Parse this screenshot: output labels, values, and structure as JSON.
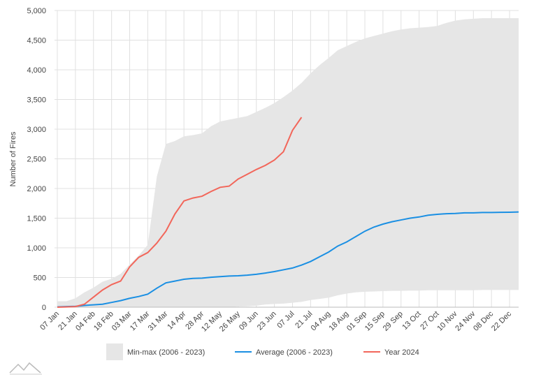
{
  "chart_data": {
    "type": "line",
    "y_label": "Number of Fires",
    "categories": [
      "07 Jan",
      null,
      "21 Jan",
      null,
      "04 Feb",
      null,
      "18 Feb",
      null,
      "03 Mar",
      null,
      "17 Mar",
      null,
      "31 Mar",
      null,
      "14 Apr",
      null,
      "28 Apr",
      null,
      "12 May",
      null,
      "26 May",
      null,
      "09 Jun",
      null,
      "23 Jun",
      null,
      "07 Jul",
      null,
      "21 Jul",
      null,
      "04 Aug",
      null,
      "18 Aug",
      null,
      "01 Sep",
      null,
      "15 Sep",
      null,
      "29 Sep",
      null,
      "13 Oct",
      null,
      "27 Oct",
      null,
      "10 Nov",
      null,
      "24 Nov",
      null,
      "08 Dec",
      null,
      "22 Dec",
      null
    ],
    "band": {
      "name": "Min-max (2006 - 2023)",
      "color": "#e6e6e6",
      "max": [
        100,
        100,
        150,
        250,
        330,
        430,
        480,
        560,
        720,
        870,
        1050,
        2200,
        2750,
        2800,
        2880,
        2900,
        2930,
        3050,
        3130,
        3160,
        3190,
        3220,
        3290,
        3360,
        3440,
        3540,
        3650,
        3780,
        3940,
        4080,
        4200,
        4330,
        4400,
        4470,
        4530,
        4570,
        4610,
        4650,
        4680,
        4700,
        4710,
        4720,
        4740,
        4790,
        4830,
        4850,
        4860,
        4870,
        4870,
        4870,
        4870,
        4870
      ],
      "min": [
        0,
        0,
        0,
        0,
        0,
        0,
        0,
        0,
        0,
        0,
        0,
        0,
        0,
        0,
        0,
        0,
        0,
        0,
        0,
        0,
        10,
        15,
        25,
        45,
        55,
        60,
        75,
        90,
        120,
        140,
        160,
        200,
        230,
        250,
        260,
        265,
        270,
        275,
        275,
        280,
        280,
        285,
        285,
        285,
        285,
        285,
        285,
        290,
        290,
        290,
        290,
        290
      ]
    },
    "series": [
      {
        "name": "Average (2006 - 2023)",
        "color": "#1a8fe3",
        "values": [
          5,
          10,
          15,
          30,
          40,
          50,
          80,
          110,
          150,
          180,
          220,
          320,
          410,
          440,
          470,
          485,
          490,
          505,
          515,
          525,
          530,
          540,
          555,
          575,
          600,
          630,
          660,
          710,
          770,
          850,
          930,
          1030,
          1100,
          1190,
          1280,
          1350,
          1400,
          1440,
          1470,
          1500,
          1520,
          1550,
          1565,
          1575,
          1580,
          1590,
          1590,
          1595,
          1595,
          1598,
          1600,
          1605
        ]
      },
      {
        "name": "Year 2024",
        "color": "#f2665a",
        "values": [
          0,
          5,
          10,
          50,
          170,
          290,
          380,
          440,
          680,
          840,
          920,
          1080,
          1280,
          1570,
          1790,
          1840,
          1870,
          1950,
          2020,
          2040,
          2160,
          2240,
          2320,
          2390,
          2480,
          2620,
          2980,
          3200,
          null,
          null,
          null,
          null,
          null,
          null,
          null,
          null,
          null,
          null,
          null,
          null,
          null,
          null,
          null,
          null,
          null,
          null,
          null,
          null,
          null,
          null,
          null,
          null
        ]
      }
    ],
    "ylim": [
      0,
      5000
    ],
    "yticks": [
      0,
      500,
      {
        "value": 1000,
        "label": "1,000"
      },
      {
        "value": 1500,
        "label": "1,500"
      },
      {
        "value": 2000,
        "label": "2,000"
      },
      {
        "value": 2500,
        "label": "2,500"
      },
      {
        "value": 3000,
        "label": "3,000"
      },
      {
        "value": 3500,
        "label": "3,500"
      },
      {
        "value": 4000,
        "label": "4,000"
      },
      {
        "value": 4500,
        "label": "4,500"
      },
      {
        "value": 5000,
        "label": "5,000"
      }
    ],
    "grid": true
  }
}
